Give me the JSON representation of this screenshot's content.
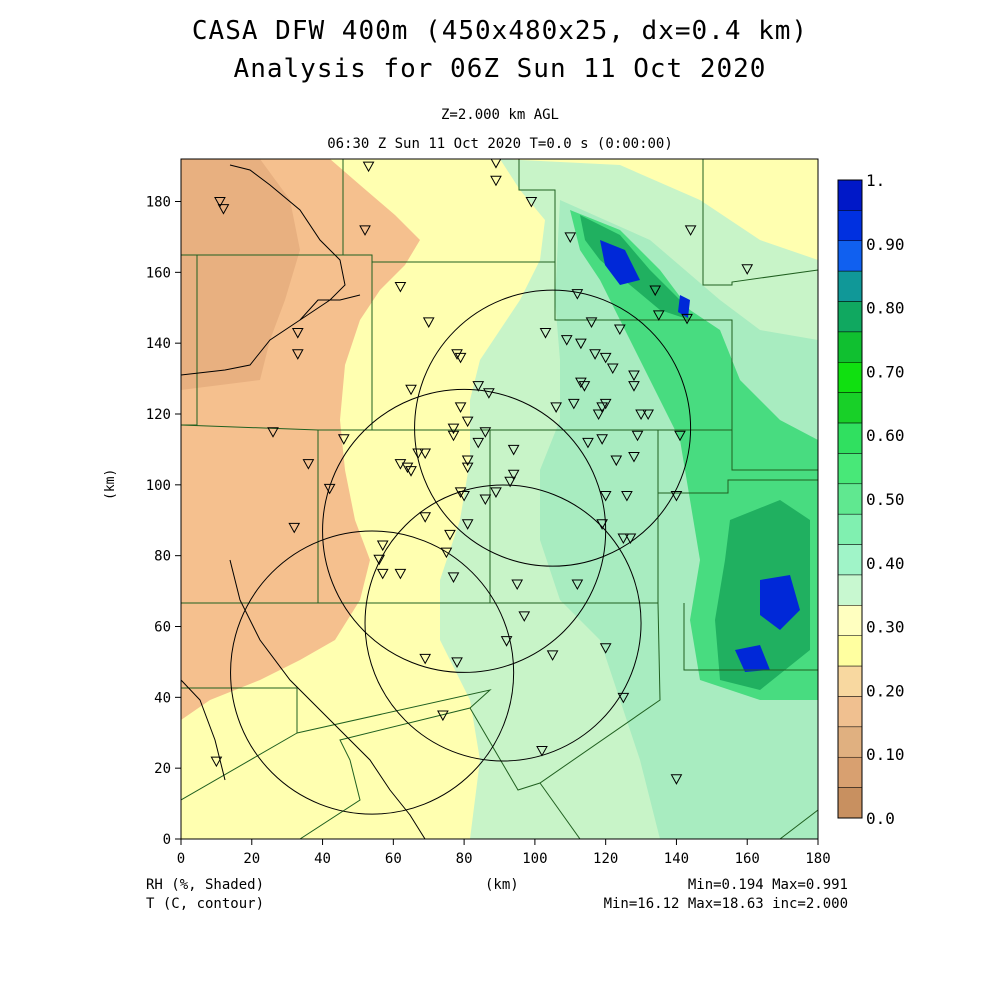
{
  "titles": {
    "line1": "CASA DFW 400m (450x480x25, dx=0.4 km)",
    "line2": "Analysis for 06Z Sun 11 Oct 2020",
    "level": "Z=2.000 km AGL",
    "time": "06:30 Z Sun 11 Oct 2020    T=0.0 s (0:00:00)"
  },
  "axes": {
    "x_label": "(km)",
    "y_label": "(km)",
    "x_ticks": [
      0,
      20,
      40,
      60,
      80,
      100,
      120,
      140,
      160,
      180
    ],
    "y_ticks": [
      0,
      20,
      40,
      60,
      80,
      100,
      120,
      140,
      160,
      180
    ],
    "x_range": [
      0,
      180
    ],
    "y_range": [
      0,
      192
    ]
  },
  "colorbar": {
    "labels": [
      "1.",
      "0.90",
      "0.80",
      "0.70",
      "0.60",
      "0.50",
      "0.40",
      "0.30",
      "0.20",
      "0.10",
      "0.0"
    ],
    "colors_top_to_bottom": [
      "#0018c8",
      "#0030e0",
      "#1060f0",
      "#109898",
      "#10a860",
      "#10c030",
      "#10e010",
      "#18d028",
      "#30e060",
      "#48e878",
      "#60e890",
      "#80f0b0",
      "#a0f4c8",
      "#c8f8d0",
      "#ffffc0",
      "#ffffa0",
      "#f8d8a0",
      "#f0c090",
      "#e0b080",
      "#d8a070",
      "#c89060"
    ]
  },
  "footer": {
    "rh_label": "RH (%, Shaded)",
    "t_label": "T (C, contour)",
    "center_label": "(km)",
    "rh_minmax": "Min=0.194  Max=0.991",
    "t_minmax": "Min=16.12  Max=18.63  inc=2.000"
  },
  "map": {
    "radars_km": [
      {
        "x": 105,
        "y": 116,
        "r": 39
      },
      {
        "x": 80,
        "y": 87,
        "r": 40
      },
      {
        "x": 91,
        "y": 61,
        "r": 39
      },
      {
        "x": 54,
        "y": 47,
        "r": 40
      }
    ],
    "stations_km": [
      [
        11,
        180
      ],
      [
        12,
        178
      ],
      [
        53,
        190
      ],
      [
        89,
        191
      ],
      [
        89,
        186
      ],
      [
        99,
        180
      ],
      [
        52,
        172
      ],
      [
        144,
        172
      ],
      [
        110,
        170
      ],
      [
        160,
        161
      ],
      [
        62,
        156
      ],
      [
        134,
        155
      ],
      [
        112,
        154
      ],
      [
        135,
        148
      ],
      [
        143,
        147
      ],
      [
        70,
        146
      ],
      [
        116,
        146
      ],
      [
        124,
        144
      ],
      [
        103,
        143
      ],
      [
        109,
        141
      ],
      [
        33,
        143
      ],
      [
        113,
        140
      ],
      [
        117,
        137
      ],
      [
        120,
        136
      ],
      [
        122,
        133
      ],
      [
        33,
        137
      ],
      [
        78,
        137
      ],
      [
        79,
        136
      ],
      [
        113,
        129
      ],
      [
        128,
        131
      ],
      [
        128,
        128
      ],
      [
        114,
        128
      ],
      [
        65,
        127
      ],
      [
        84,
        128
      ],
      [
        87,
        126
      ],
      [
        79,
        122
      ],
      [
        106,
        122
      ],
      [
        111,
        123
      ],
      [
        119,
        122
      ],
      [
        120,
        123
      ],
      [
        118,
        120
      ],
      [
        130,
        120
      ],
      [
        132,
        120
      ],
      [
        81,
        118
      ],
      [
        77,
        116
      ],
      [
        86,
        115
      ],
      [
        26,
        115
      ],
      [
        46,
        113
      ],
      [
        77,
        114
      ],
      [
        84,
        112
      ],
      [
        115,
        112
      ],
      [
        119,
        113
      ],
      [
        129,
        114
      ],
      [
        141,
        114
      ],
      [
        67,
        109
      ],
      [
        94,
        110
      ],
      [
        69,
        109
      ],
      [
        36,
        106
      ],
      [
        62,
        106
      ],
      [
        64,
        105
      ],
      [
        65,
        104
      ],
      [
        81,
        107
      ],
      [
        81,
        105
      ],
      [
        123,
        107
      ],
      [
        128,
        108
      ],
      [
        94,
        103
      ],
      [
        93,
        101
      ],
      [
        42,
        99
      ],
      [
        89,
        98
      ],
      [
        79,
        98
      ],
      [
        80,
        97
      ],
      [
        86,
        96
      ],
      [
        120,
        97
      ],
      [
        126,
        97
      ],
      [
        140,
        97
      ],
      [
        32,
        88
      ],
      [
        69,
        91
      ],
      [
        81,
        89
      ],
      [
        119,
        89
      ],
      [
        125,
        85
      ],
      [
        127,
        85
      ],
      [
        76,
        86
      ],
      [
        57,
        83
      ],
      [
        56,
        79
      ],
      [
        57,
        75
      ],
      [
        62,
        75
      ],
      [
        75,
        81
      ],
      [
        77,
        74
      ],
      [
        95,
        72
      ],
      [
        112,
        72
      ],
      [
        97,
        63
      ],
      [
        92,
        56
      ],
      [
        69,
        51
      ],
      [
        78,
        50
      ],
      [
        105,
        52
      ],
      [
        120,
        54
      ],
      [
        125,
        40
      ],
      [
        74,
        35
      ],
      [
        102,
        25
      ],
      [
        140,
        17
      ],
      [
        10,
        22
      ]
    ]
  }
}
